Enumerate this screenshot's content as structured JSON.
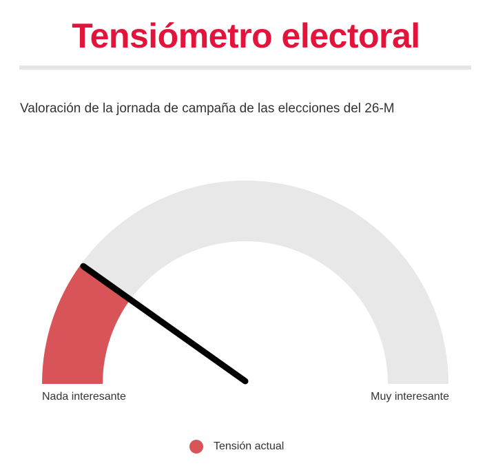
{
  "header": {
    "title": "Tensiómetro electoral",
    "subtitle": "Valoración de la jornada de campaña de las elecciones del 26-M"
  },
  "chart_data": {
    "type": "gauge",
    "range": [
      0,
      100
    ],
    "value": 20,
    "min_label": "Nada interesante",
    "max_label": "Muy interesante",
    "legend": [
      {
        "label": "Tensión actual",
        "color": "#d95459"
      }
    ]
  },
  "colors": {
    "title": "#e3143c",
    "track": "#e8e8e8",
    "fill": "#d95459",
    "needle": "#000000",
    "divider": "#e6e6e6"
  }
}
